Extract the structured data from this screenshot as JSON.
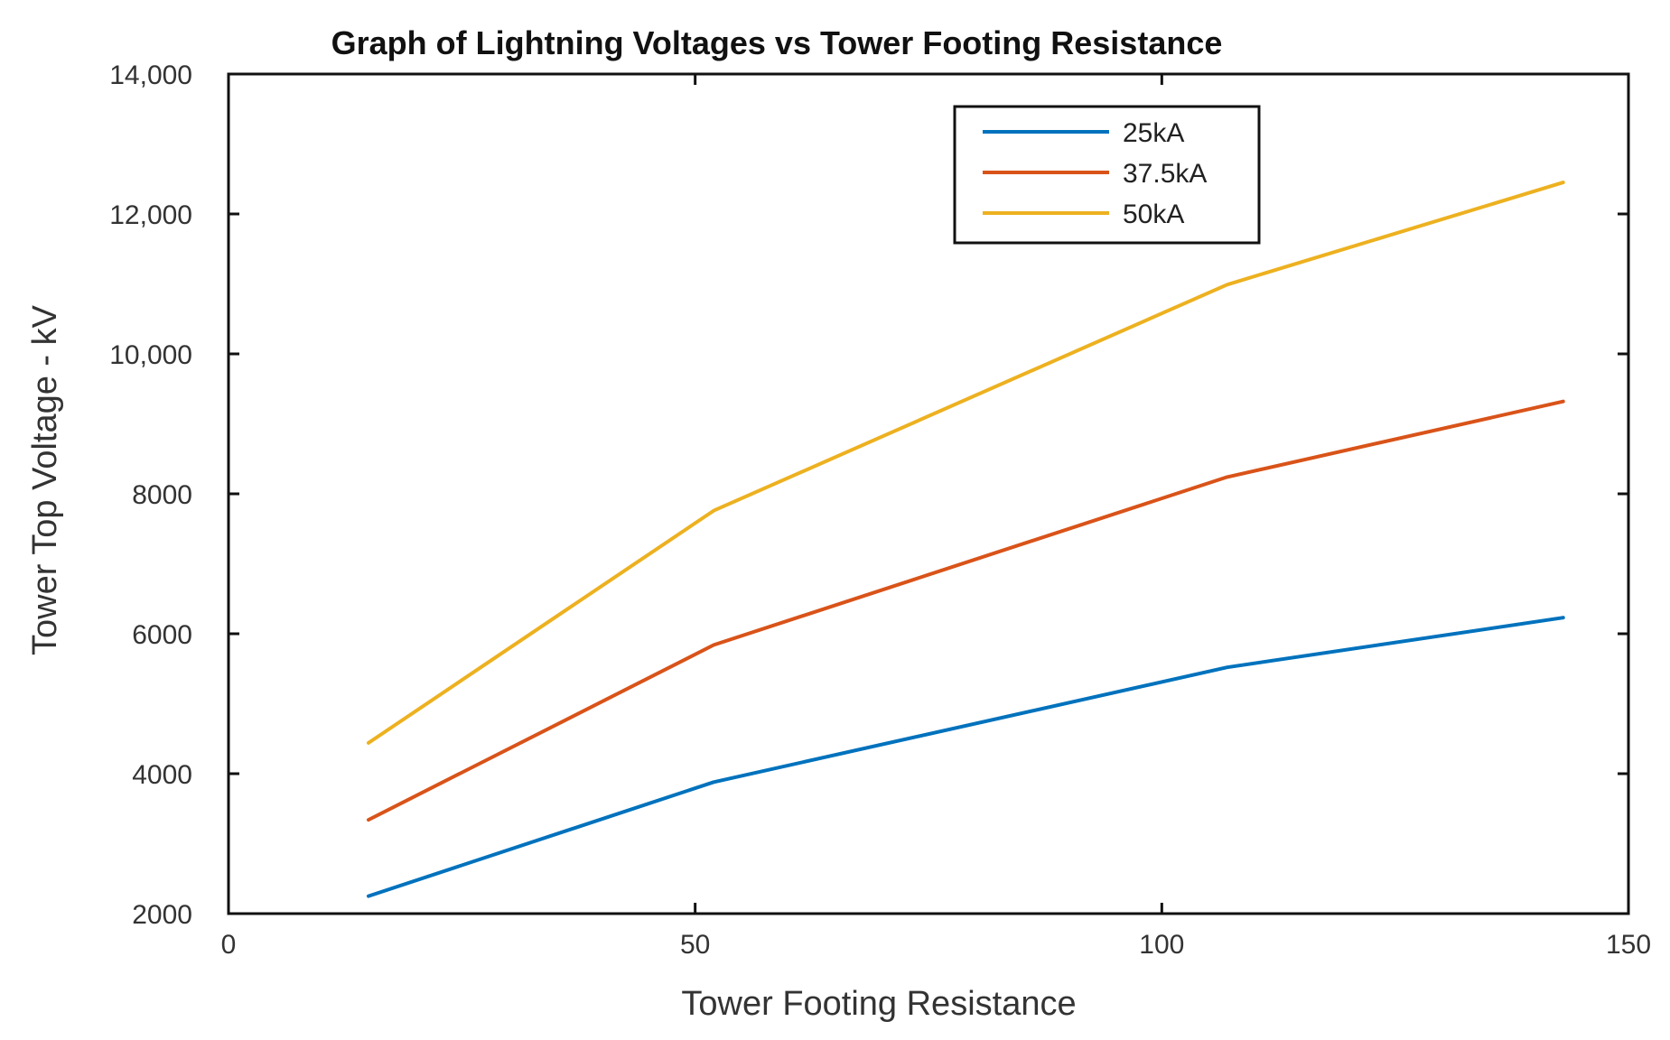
{
  "chart_data": {
    "type": "line",
    "title": "Graph of Lightning Voltages vs Tower Footing Resistance",
    "xlabel": "Tower Footing Resistance",
    "ylabel": "Tower Top Voltage - kV",
    "xlim": [
      0,
      150
    ],
    "ylim": [
      2000,
      14000
    ],
    "xticks": [
      0,
      50,
      100,
      150
    ],
    "xtick_labels": [
      "0",
      "50",
      "100",
      "150"
    ],
    "yticks": [
      2000,
      4000,
      6000,
      8000,
      10000,
      12000,
      14000
    ],
    "ytick_labels": [
      "2000",
      "4000",
      "6000",
      "8000",
      "10,000",
      "12,000",
      "14,000"
    ],
    "grid": false,
    "legend_position": "top-right",
    "x": [
      15,
      52,
      107,
      143
    ],
    "series": [
      {
        "name": "25kA",
        "color": "#0072BD",
        "values": [
          2250,
          3880,
          5520,
          6230
        ]
      },
      {
        "name": "37.5kA",
        "color": "#D95319",
        "values": [
          3340,
          5840,
          8240,
          9320
        ]
      },
      {
        "name": "50kA",
        "color": "#EDB120",
        "values": [
          4440,
          7760,
          10990,
          12450
        ]
      }
    ]
  }
}
